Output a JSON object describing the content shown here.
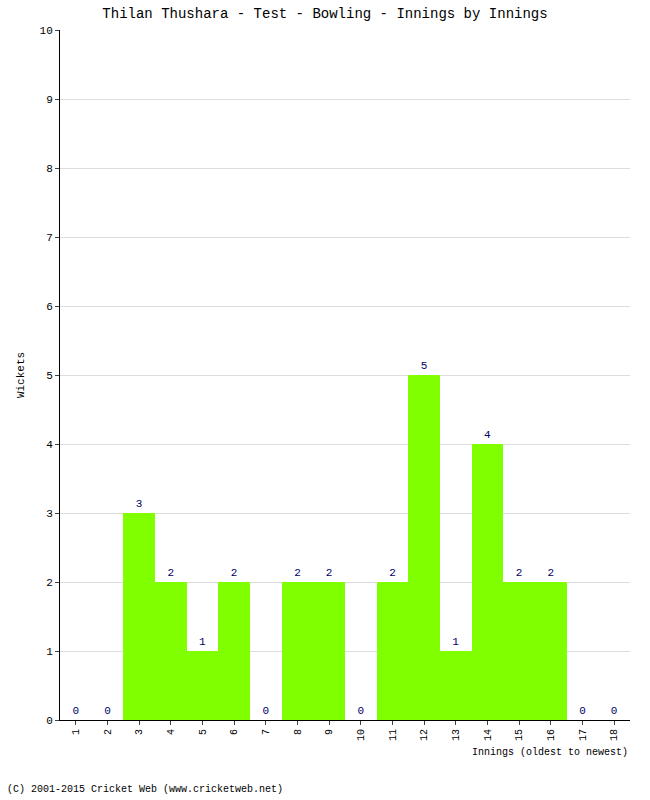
{
  "chart_data": {
    "type": "bar",
    "title": "Thilan Thushara - Test - Bowling - Innings by Innings",
    "x_label": "Innings (oldest to newest)",
    "y_label": "Wickets",
    "copyright": "(C) 2001-2015 Cricket Web (www.cricketweb.net)",
    "categories": [
      "1",
      "2",
      "3",
      "4",
      "5",
      "6",
      "7",
      "8",
      "9",
      "10",
      "11",
      "12",
      "13",
      "14",
      "15",
      "16",
      "17",
      "18"
    ],
    "values": [
      0,
      0,
      3,
      2,
      1,
      2,
      0,
      2,
      2,
      0,
      2,
      5,
      1,
      4,
      2,
      2,
      0,
      0
    ],
    "color": "#80ff00",
    "ylim": [
      0,
      10
    ],
    "yticks": [
      0,
      1,
      2,
      3,
      4,
      5,
      6,
      7,
      8,
      9,
      10
    ],
    "grid": true,
    "data_labels": true
  }
}
